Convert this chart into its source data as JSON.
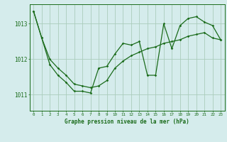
{
  "title": "Graphe pression niveau de la mer (hPa)",
  "background_color": "#d5ecec",
  "grid_color": "#aaccbb",
  "line_color": "#1a6b1a",
  "xlim": [
    -0.5,
    23.5
  ],
  "ylim": [
    1010.55,
    1013.55
  ],
  "yticks": [
    1011,
    1012,
    1013
  ],
  "xticks": [
    0,
    1,
    2,
    3,
    4,
    5,
    6,
    7,
    8,
    9,
    10,
    11,
    12,
    13,
    14,
    15,
    16,
    17,
    18,
    19,
    20,
    21,
    22,
    23
  ],
  "series1_x": [
    0,
    1,
    2,
    3,
    4,
    5,
    6,
    7,
    8,
    9,
    10,
    11,
    12,
    13,
    14,
    15,
    16,
    17,
    18,
    19,
    20,
    21,
    22,
    23
  ],
  "series1_y": [
    1013.35,
    1012.6,
    1012.0,
    1011.75,
    1011.55,
    1011.3,
    1011.25,
    1011.2,
    1011.25,
    1011.4,
    1011.75,
    1011.95,
    1012.1,
    1012.2,
    1012.3,
    1012.35,
    1012.45,
    1012.5,
    1012.55,
    1012.65,
    1012.7,
    1012.75,
    1012.6,
    1012.55
  ],
  "series2_x": [
    0,
    1,
    2,
    3,
    4,
    5,
    6,
    7,
    8,
    9,
    10,
    11,
    12,
    13,
    14,
    15,
    16,
    17,
    18,
    19,
    20,
    21,
    22,
    23
  ],
  "series2_y": [
    1013.35,
    1012.6,
    1011.85,
    1011.55,
    1011.35,
    1011.1,
    1011.1,
    1011.05,
    1011.75,
    1011.8,
    1012.15,
    1012.45,
    1012.4,
    1012.5,
    1011.55,
    1011.55,
    1013.0,
    1012.3,
    1012.95,
    1013.15,
    1013.2,
    1013.05,
    1012.95,
    1012.55
  ]
}
